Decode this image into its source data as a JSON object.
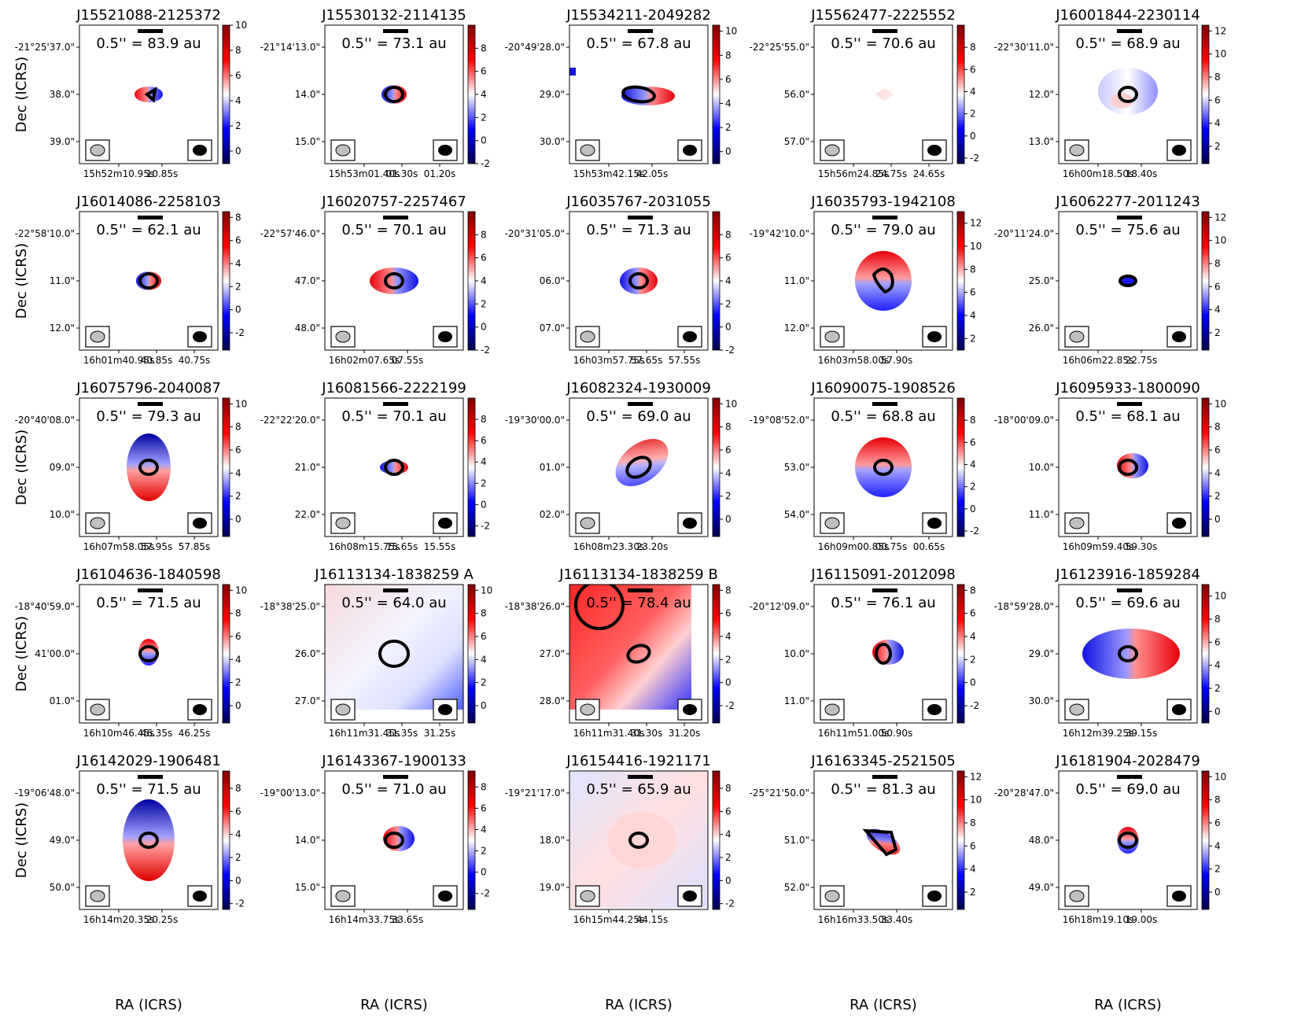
{
  "figure": {
    "ylabel": "Dec (ICRS)",
    "xlabel": "RA (ICRS)"
  },
  "chart_data": [
    {
      "type": "heatmap",
      "title": "J15521088-2125372",
      "scale_label": "0.5'' = 83.9 au",
      "cbar_range": [
        -1,
        10
      ],
      "cbar_ticks": [
        "0",
        "2",
        "4",
        "6",
        "8",
        "10"
      ],
      "dec_ticks": [
        "-21°25'37.0\"",
        "38.0\"",
        "39.0\""
      ],
      "ra_ticks": [
        "15h52m10.95s",
        "10.85s"
      ],
      "emission": "small_tilt",
      "contour": "irregular_small"
    },
    {
      "type": "heatmap",
      "title": "J15530132-2114135",
      "scale_label": "0.5'' = 73.1 au",
      "cbar_range": [
        -2,
        10
      ],
      "cbar_ticks": [
        "-2",
        "0",
        "2",
        "4",
        "6",
        "8"
      ],
      "dec_ticks": [
        "-21°14'13.0\"",
        "14.0\"",
        "15.0\""
      ],
      "ra_ticks": [
        "15h53m01.40s",
        "01.30s",
        "01.20s"
      ],
      "emission": "small_rot",
      "contour": "small_ring"
    },
    {
      "type": "heatmap",
      "title": "J15534211-2049282",
      "scale_label": "0.5'' = 67.8 au",
      "cbar_range": [
        -1,
        10.5
      ],
      "cbar_ticks": [
        "0",
        "2",
        "4",
        "6",
        "8",
        "10"
      ],
      "dec_ticks": [
        "-20°49'28.0\"",
        "29.0\"",
        "30.0\""
      ],
      "ra_ticks": [
        "15h53m42.15s",
        "42.05s"
      ],
      "emission": "elongated_blue_red",
      "contour": "elongated"
    },
    {
      "type": "heatmap",
      "title": "J15562477-2225552",
      "scale_label": "0.5'' = 70.6 au",
      "cbar_range": [
        -2.5,
        10
      ],
      "cbar_ticks": [
        "-2",
        "0",
        "2",
        "4",
        "6",
        "8"
      ],
      "dec_ticks": [
        "-22°25'55.0\"",
        "56.0\"",
        "57.0\""
      ],
      "ra_ticks": [
        "15h56m24.85s",
        "24.75s",
        "24.65s"
      ],
      "emission": "faint_diamond",
      "contour": "none"
    },
    {
      "type": "heatmap",
      "title": "J16001844-2230114",
      "scale_label": "0.5'' = 68.9 au",
      "cbar_range": [
        0.5,
        12.5
      ],
      "cbar_ticks": [
        "2",
        "4",
        "6",
        "8",
        "10",
        "12"
      ],
      "dec_ticks": [
        "-22°30'11.0\"",
        "12.0\"",
        "13.0\""
      ],
      "ra_ticks": [
        "16h00m18.50s",
        "18.40s"
      ],
      "emission": "blob_blue",
      "contour": "small_ring"
    },
    {
      "type": "heatmap",
      "title": "J16014086-2258103",
      "scale_label": "0.5'' = 62.1 au",
      "cbar_range": [
        -3.5,
        8.5
      ],
      "cbar_ticks": [
        "-2",
        "0",
        "2",
        "4",
        "6",
        "8"
      ],
      "dec_ticks": [
        "-22°58'10.0\"",
        "11.0\"",
        "12.0\""
      ],
      "ra_ticks": [
        "16h01m40.95s",
        "40.85s",
        "40.75s"
      ],
      "emission": "small_rot",
      "contour": "small_ring"
    },
    {
      "type": "heatmap",
      "title": "J16020757-2257467",
      "scale_label": "0.5'' = 70.1 au",
      "cbar_range": [
        -2,
        10
      ],
      "cbar_ticks": [
        "-2",
        "0",
        "2",
        "4",
        "6",
        "8"
      ],
      "dec_ticks": [
        "-22°57'46.0\"",
        "47.0\"",
        "48.0\""
      ],
      "ra_ticks": [
        "16h02m07.65s",
        "07.55s"
      ],
      "emission": "red_blue_wide",
      "contour": "small_ring"
    },
    {
      "type": "heatmap",
      "title": "J16035767-2031055",
      "scale_label": "0.5'' = 71.3 au",
      "cbar_range": [
        -2,
        10
      ],
      "cbar_ticks": [
        "-2",
        "0",
        "2",
        "4",
        "6",
        "8"
      ],
      "dec_ticks": [
        "-20°31'05.0\"",
        "06.0\"",
        "07.0\""
      ],
      "ra_ticks": [
        "16h03m57.75s",
        "57.65s",
        "57.55s"
      ],
      "emission": "blue_red_wide",
      "contour": "small_ring"
    },
    {
      "type": "heatmap",
      "title": "J16035793-1942108",
      "scale_label": "0.5'' = 79.0 au",
      "cbar_range": [
        1,
        13
      ],
      "cbar_ticks": [
        "2",
        "4",
        "6",
        "8",
        "10",
        "12"
      ],
      "dec_ticks": [
        "-19°42'10.0\"",
        "11.0\"",
        "12.0\""
      ],
      "ra_ticks": [
        "16h03m58.00s",
        "57.90s"
      ],
      "emission": "red_top_blue_bottom",
      "contour": "big_blob"
    },
    {
      "type": "heatmap",
      "title": "J16062277-2011243",
      "scale_label": "0.5'' = 75.6 au",
      "cbar_range": [
        0.5,
        12.5
      ],
      "cbar_ticks": [
        "2",
        "4",
        "6",
        "8",
        "10",
        "12"
      ],
      "dec_ticks": [
        "-20°11'24.0\"",
        "25.0\"",
        "26.0\""
      ],
      "ra_ticks": [
        "16h06m22.85s",
        "22.75s"
      ],
      "emission": "tiny_blue",
      "contour": "tiny"
    },
    {
      "type": "heatmap",
      "title": "J16075796-2040087",
      "scale_label": "0.5'' = 79.3 au",
      "cbar_range": [
        -1.5,
        10.5
      ],
      "cbar_ticks": [
        "0",
        "2",
        "4",
        "6",
        "8",
        "10"
      ],
      "dec_ticks": [
        "-20°40'08.0\"",
        "09.0\"",
        "10.0\""
      ],
      "ra_ticks": [
        "16h07m58.05s",
        "57.95s",
        "57.85s"
      ],
      "emission": "blue_top_red_bottom",
      "contour": "small_ring"
    },
    {
      "type": "heatmap",
      "title": "J16081566-2222199",
      "scale_label": "0.5'' = 70.1 au",
      "cbar_range": [
        -3,
        10
      ],
      "cbar_ticks": [
        "-2",
        "0",
        "2",
        "4",
        "6",
        "8"
      ],
      "dec_ticks": [
        "-22°22'20.0\"",
        "21.0\"",
        "22.0\""
      ],
      "ra_ticks": [
        "16h08m15.75s",
        "15.65s",
        "15.55s"
      ],
      "emission": "small_lr",
      "contour": "small_ring"
    },
    {
      "type": "heatmap",
      "title": "J16082324-1930009",
      "scale_label": "0.5'' = 69.0 au",
      "cbar_range": [
        -1.5,
        10.5
      ],
      "cbar_ticks": [
        "0",
        "2",
        "4",
        "6",
        "8",
        "10"
      ],
      "dec_ticks": [
        "-19°30'00.0\"",
        "01.0\"",
        "02.0\""
      ],
      "ra_ticks": [
        "16h08m23.30s",
        "23.20s"
      ],
      "emission": "diagonal_disk",
      "contour": "ellipse_tilted"
    },
    {
      "type": "heatmap",
      "title": "J16090075-1908526",
      "scale_label": "0.5'' = 68.8 au",
      "cbar_range": [
        -2.5,
        10
      ],
      "cbar_ticks": [
        "-2",
        "0",
        "2",
        "4",
        "6",
        "8"
      ],
      "dec_ticks": [
        "-19°08'52.0\"",
        "53.0\"",
        "54.0\""
      ],
      "ra_ticks": [
        "16h09m00.85s",
        "00.75s",
        "00.65s"
      ],
      "emission": "red_top_blue_bottom",
      "contour": "small_ring"
    },
    {
      "type": "heatmap",
      "title": "J16095933-1800090",
      "scale_label": "0.5'' = 68.1 au",
      "cbar_range": [
        -1.5,
        10.5
      ],
      "cbar_ticks": [
        "0",
        "2",
        "4",
        "6",
        "8",
        "10"
      ],
      "dec_ticks": [
        "-18°00'09.0\"",
        "10.0\"",
        "11.0\""
      ],
      "ra_ticks": [
        "16h09m59.40s",
        "59.30s"
      ],
      "emission": "red_left_blue_right",
      "contour": "small_ring"
    },
    {
      "type": "heatmap",
      "title": "J16104636-1840598",
      "scale_label": "0.5'' = 71.5 au",
      "cbar_range": [
        -1.5,
        10.5
      ],
      "cbar_ticks": [
        "0",
        "2",
        "4",
        "6",
        "8",
        "10"
      ],
      "dec_ticks": [
        "-18°40'59.0\"",
        "41'00.0\"",
        "01.0\""
      ],
      "ra_ticks": [
        "16h10m46.45s",
        "46.35s",
        "46.25s"
      ],
      "emission": "small_red_top",
      "contour": "small_ring"
    },
    {
      "type": "heatmap",
      "title": "J16113134-1838259 A",
      "scale_label": "0.5'' = 64.0 au",
      "cbar_range": [
        -1.5,
        10.5
      ],
      "cbar_ticks": [
        "0",
        "2",
        "4",
        "6",
        "8",
        "10"
      ],
      "dec_ticks": [
        "-18°38'25.0\"",
        "26.0\"",
        "27.0\""
      ],
      "ra_ticks": [
        "16h11m31.45s",
        "31.35s",
        "31.25s"
      ],
      "emission": "extended_pale",
      "contour": "big_circle"
    },
    {
      "type": "heatmap",
      "title": "J16113134-1838259 B",
      "scale_label": "0.5'' = 78.4 au",
      "cbar_range": [
        -3.5,
        8.5
      ],
      "cbar_ticks": [
        "-2",
        "0",
        "2",
        "4",
        "6",
        "8"
      ],
      "dec_ticks": [
        "-18°38'26.0\"",
        "27.0\"",
        "28.0\""
      ],
      "ra_ticks": [
        "16h11m31.40s",
        "31.30s",
        "31.20s"
      ],
      "emission": "extended_red",
      "contour": "two_ellipses"
    },
    {
      "type": "heatmap",
      "title": "J16115091-2012098",
      "scale_label": "0.5'' = 76.1 au",
      "cbar_range": [
        -3.5,
        8.5
      ],
      "cbar_ticks": [
        "-2",
        "0",
        "2",
        "4",
        "6",
        "8"
      ],
      "dec_ticks": [
        "-20°12'09.0\"",
        "10.0\"",
        "11.0\""
      ],
      "ra_ticks": [
        "16h11m51.00s",
        "50.90s"
      ],
      "emission": "red_left_blue_right",
      "contour": "blob_small"
    },
    {
      "type": "heatmap",
      "title": "J16123916-1859284",
      "scale_label": "0.5'' = 69.6 au",
      "cbar_range": [
        -1,
        11
      ],
      "cbar_ticks": [
        "0",
        "2",
        "4",
        "6",
        "8",
        "10"
      ],
      "dec_ticks": [
        "-18°59'28.0\"",
        "29.0\"",
        "30.0\""
      ],
      "ra_ticks": [
        "16h12m39.25s",
        "39.15s"
      ],
      "emission": "wide_blue_red",
      "contour": "small_ring"
    },
    {
      "type": "heatmap",
      "title": "J16142029-1906481",
      "scale_label": "0.5'' = 71.5 au",
      "cbar_range": [
        -2.5,
        9.5
      ],
      "cbar_ticks": [
        "-2",
        "0",
        "2",
        "4",
        "6",
        "8"
      ],
      "dec_ticks": [
        "-19°06'48.0\"",
        "49.0\"",
        "50.0\""
      ],
      "ra_ticks": [
        "16h14m20.35s",
        "20.25s"
      ],
      "emission": "tall_blue_red",
      "contour": "small_ring"
    },
    {
      "type": "heatmap",
      "title": "J16143367-1900133",
      "scale_label": "0.5'' = 71.0 au",
      "cbar_range": [
        -3.5,
        9.5
      ],
      "cbar_ticks": [
        "-2",
        "0",
        "2",
        "4",
        "6",
        "8"
      ],
      "dec_ticks": [
        "-19°00'13.0\"",
        "14.0\"",
        "15.0\""
      ],
      "ra_ticks": [
        "16h14m33.75s",
        "33.65s"
      ],
      "emission": "red_left_blue_right",
      "contour": "small_ring"
    },
    {
      "type": "heatmap",
      "title": "J16154416-1921171",
      "scale_label": "0.5'' = 65.9 au",
      "cbar_range": [
        -2.5,
        9.5
      ],
      "cbar_ticks": [
        "-2",
        "0",
        "2",
        "4",
        "6",
        "8"
      ],
      "dec_ticks": [
        "-19°21'17.0\"",
        "18.0\"",
        "19.0\""
      ],
      "ra_ticks": [
        "16h15m44.25s",
        "44.15s"
      ],
      "emission": "extended_mottled",
      "contour": "small_ring"
    },
    {
      "type": "heatmap",
      "title": "J16163345-2521505",
      "scale_label": "0.5'' = 81.3 au",
      "cbar_range": [
        0.5,
        12.5
      ],
      "cbar_ticks": [
        "2",
        "4",
        "6",
        "8",
        "10",
        "12"
      ],
      "dec_ticks": [
        "-25°21'50.0\"",
        "51.0\"",
        "52.0\""
      ],
      "ra_ticks": [
        "16h16m33.50s",
        "33.40s"
      ],
      "emission": "diag_blue_red",
      "contour": "elongated_diag"
    },
    {
      "type": "heatmap",
      "title": "J16181904-2028479",
      "scale_label": "0.5'' = 69.0 au",
      "cbar_range": [
        -1.5,
        10.5
      ],
      "cbar_ticks": [
        "0",
        "2",
        "4",
        "6",
        "8",
        "10"
      ],
      "dec_ticks": [
        "-20°28'47.0\"",
        "48.0\"",
        "49.0\""
      ],
      "ra_ticks": [
        "16h18m19.10s",
        "19.00s"
      ],
      "emission": "small_red_top_blue_bottom",
      "contour": "small_ring"
    }
  ]
}
